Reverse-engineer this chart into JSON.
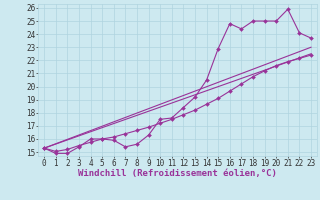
{
  "bg_color": "#cde9f0",
  "line_color": "#993399",
  "xlabel": "Windchill (Refroidissement éolien,°C)",
  "xlim": [
    -0.5,
    23.5
  ],
  "ylim": [
    14.7,
    26.3
  ],
  "xticks": [
    0,
    1,
    2,
    3,
    4,
    5,
    6,
    7,
    8,
    9,
    10,
    11,
    12,
    13,
    14,
    15,
    16,
    17,
    18,
    19,
    20,
    21,
    22,
    23
  ],
  "yticks": [
    15,
    16,
    17,
    18,
    19,
    20,
    21,
    22,
    23,
    24,
    25,
    26
  ],
  "line1_x": [
    0,
    1,
    2,
    3,
    4,
    5,
    6,
    7,
    8,
    9,
    10,
    11,
    12,
    13,
    14,
    15,
    16,
    17,
    18,
    19,
    20,
    21,
    22,
    23
  ],
  "line1_y": [
    15.3,
    14.9,
    14.9,
    15.4,
    16.0,
    16.0,
    15.9,
    15.4,
    15.6,
    16.3,
    17.5,
    17.6,
    18.4,
    19.2,
    20.5,
    22.9,
    24.8,
    24.4,
    25.0,
    25.0,
    25.0,
    25.9,
    24.1,
    23.7
  ],
  "line2_x": [
    0,
    1,
    2,
    3,
    4,
    5,
    6,
    7,
    8,
    9,
    10,
    11,
    12,
    13,
    14,
    15,
    16,
    17,
    18,
    19,
    20,
    21,
    22,
    23
  ],
  "line2_y": [
    15.3,
    15.05,
    15.2,
    15.5,
    15.75,
    16.0,
    16.15,
    16.4,
    16.65,
    16.9,
    17.2,
    17.5,
    17.85,
    18.2,
    18.65,
    19.1,
    19.65,
    20.2,
    20.75,
    21.2,
    21.6,
    21.9,
    22.15,
    22.4
  ],
  "line3_x": [
    0,
    23
  ],
  "line3_y": [
    15.3,
    23.0
  ],
  "line4_x": [
    0,
    23
  ],
  "line4_y": [
    15.3,
    22.5
  ],
  "grid_color": "#b0d4df",
  "marker": "D",
  "markersize": 2.0,
  "linewidth": 0.8,
  "xlabel_fontsize": 6.5,
  "tick_fontsize": 5.5
}
